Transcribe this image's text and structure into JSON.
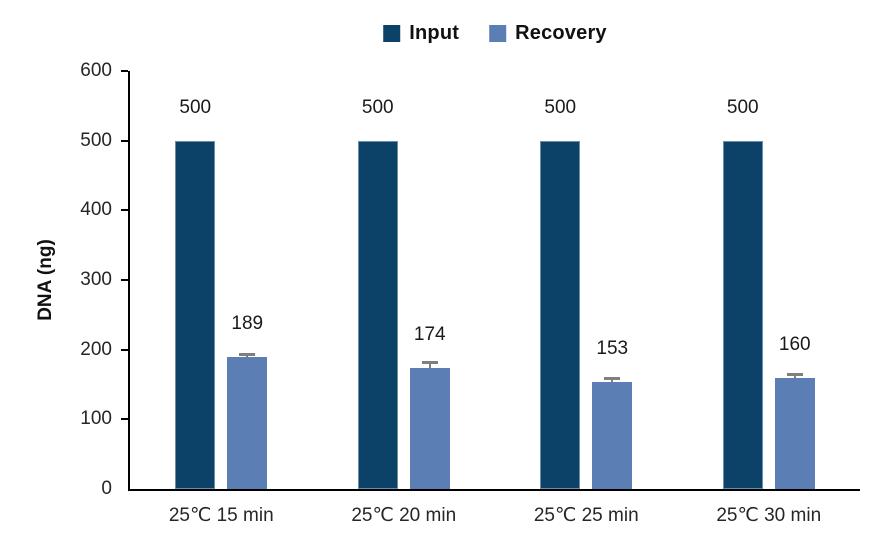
{
  "chart_data": {
    "type": "bar",
    "title": "",
    "categories": [
      "25℃ 15 min",
      "25℃ 20 min",
      "25℃ 25 min",
      "25℃ 30 min"
    ],
    "series": [
      {
        "name": "Input",
        "color": "#0d4268",
        "values": [
          500,
          500,
          500,
          500
        ]
      },
      {
        "name": "Recovery",
        "color": "#5b7fb5",
        "values": [
          189,
          174,
          153,
          160
        ],
        "errors": [
          2,
          5,
          3,
          2
        ]
      }
    ],
    "value_labels": {
      "Input": [
        "500",
        "500",
        "500",
        "500"
      ],
      "Recovery": [
        "189",
        "174",
        "153",
        "160"
      ]
    },
    "xlabel": "",
    "ylabel": "DNA (ng)",
    "ylim": [
      0,
      600
    ],
    "ytick_step": 100,
    "ytick_labels": [
      "0",
      "100",
      "200",
      "300",
      "400",
      "500",
      "600"
    ],
    "grid": false,
    "legend_position": "top-center",
    "colors": {
      "input_bar": "#0d4268",
      "recovery_bar": "#5b7fb5",
      "error_bar": "#7f7f7f",
      "axis": "#000000",
      "tick_text": "#262626",
      "label_text": "#1a1a1a"
    }
  }
}
